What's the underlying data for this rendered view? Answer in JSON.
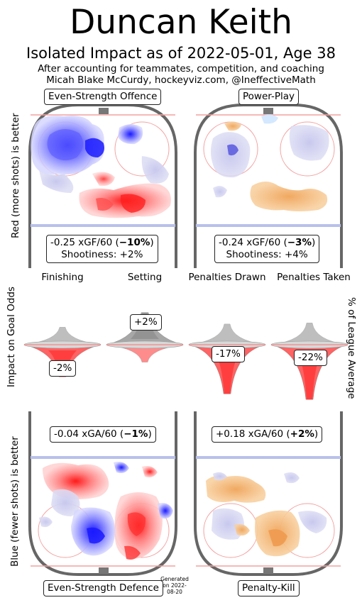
{
  "header": {
    "title": "Duncan Keith",
    "subtitle": "Isolated Impact as of 2022-05-01, Age 38",
    "note_line1": "After accounting for teammates, competition, and coaching",
    "note_line2": "Micah Blake McCurdy, hockeyviz.com, @IneffectiveMath"
  },
  "axis_labels": {
    "top_left": "Red (more shots) is better",
    "middle_left": "Impact on Goal Odds",
    "middle_right": "% of League Average",
    "bottom_left": "Blue (fewer shots) is better"
  },
  "footer": {
    "generated": "Generated on 2022-08-20"
  },
  "colors": {
    "red": "#ff3030",
    "blue": "#3344ff",
    "orange": "#f5b870",
    "grey": "#888888",
    "rink": "#666666"
  },
  "panels": {
    "es_offence": {
      "title": "Even-Strength Offence",
      "stat_line1_pre": "-0.25 xGF/60 (",
      "stat_line1_bold": "−10%",
      "stat_line1_post": ")",
      "stat_line2": "Shootiness: +2%"
    },
    "powerplay": {
      "title": "Power-Play",
      "stat_line1_pre": "-0.24 xGF/60 (",
      "stat_line1_bold": "−3%",
      "stat_line1_post": ")",
      "stat_line2": "Shootiness: +4%"
    },
    "es_defence": {
      "title": "Even-Strength Defence",
      "stat_line1_pre": "-0.04 xGA/60 (",
      "stat_line1_bold": "−1%",
      "stat_line1_post": ")"
    },
    "penalty_kill": {
      "title": "Penalty-Kill",
      "stat_line1_pre": "+0.18 xGA/60 (",
      "stat_line1_bold": "+2%",
      "stat_line1_post": ")"
    }
  },
  "chart_data": {
    "type": "bar",
    "categories": [
      "Finishing",
      "Setting",
      "Penalties Drawn",
      "Penalties Taken"
    ],
    "values": [
      -2,
      2,
      -17,
      -22
    ],
    "labels": [
      "-2%",
      "+2%",
      "-17%",
      "-22%"
    ],
    "ylabel": "Impact on Goal Odds",
    "ylabel_right": "% of League Average"
  }
}
